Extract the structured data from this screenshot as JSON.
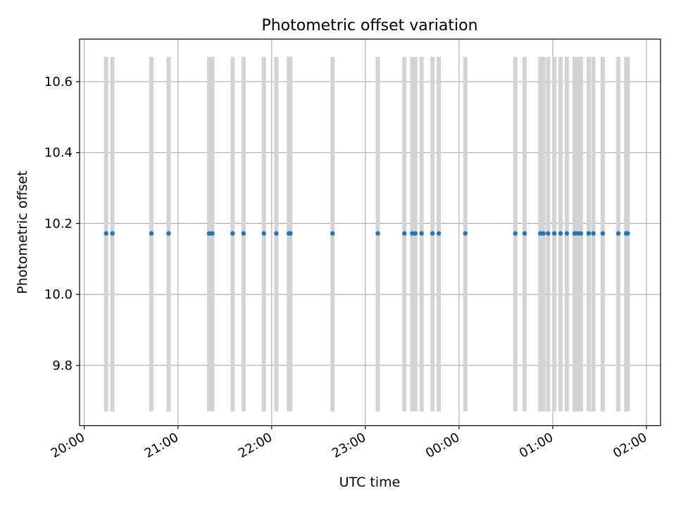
{
  "chart_data": {
    "type": "scatter",
    "title": "Photometric offset variation",
    "xlabel": "UTC time",
    "ylabel": "Photometric offset",
    "x_type": "time",
    "xlim": [
      "19:57",
      "02:09"
    ],
    "ylim": [
      9.63,
      10.72
    ],
    "x_ticks": [
      "20:00",
      "21:00",
      "22:00",
      "23:00",
      "00:00",
      "01:00",
      "02:00"
    ],
    "y_ticks": [
      "9.8",
      "10.0",
      "10.2",
      "10.4",
      "10.6"
    ],
    "grid": true,
    "colors": {
      "points": "#1f77b4",
      "bands": "#d3d3d3",
      "grid": "#b0b0b0"
    },
    "band_range": [
      9.67,
      10.67
    ],
    "series": [
      {
        "times": [
          "20:14",
          "20:18",
          "20:43",
          "20:54",
          "21:20",
          "21:22",
          "21:35",
          "21:42",
          "21:55",
          "22:03",
          "22:11",
          "22:12",
          "22:39",
          "23:08",
          "23:25",
          "23:30",
          "23:32",
          "23:36",
          "23:43",
          "23:47",
          "00:04",
          "00:36",
          "00:42",
          "00:52",
          "00:54",
          "00:57",
          "01:01",
          "01:05",
          "01:09",
          "01:14",
          "01:16",
          "01:18",
          "01:23",
          "01:26",
          "01:32",
          "01:42",
          "01:47",
          "01:48"
        ],
        "values": [
          10.172,
          10.172,
          10.172,
          10.172,
          10.172,
          10.172,
          10.172,
          10.172,
          10.172,
          10.172,
          10.172,
          10.172,
          10.172,
          10.172,
          10.172,
          10.172,
          10.172,
          10.172,
          10.172,
          10.172,
          10.172,
          10.172,
          10.172,
          10.172,
          10.172,
          10.172,
          10.172,
          10.172,
          10.172,
          10.172,
          10.172,
          10.172,
          10.172,
          10.172,
          10.172,
          10.172,
          10.172,
          10.172
        ]
      }
    ]
  }
}
